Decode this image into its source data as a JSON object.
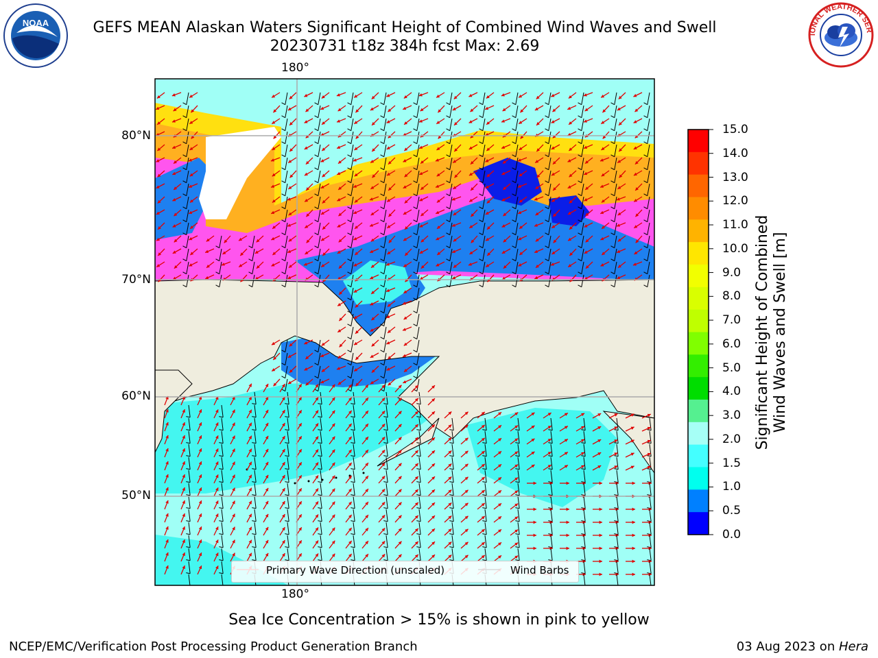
{
  "title": {
    "line1": "GEFS MEAN Alaskan Waters Significant Height of Combined Wind Waves and Swell",
    "line2": "20230731 t18z 384h fcst   Max: 2.69"
  },
  "logos": {
    "left_text": "NOAA",
    "right_text": "NATIONAL WEATHER SERVICE"
  },
  "map": {
    "lon_labels": {
      "top": "180°",
      "bottom": "180°"
    },
    "lat_labels": [
      "80°N",
      "70°N",
      "60°N",
      "50°N"
    ],
    "legend": {
      "wave_label": "Primary Wave Direction (unscaled)",
      "wind_label": "Wind Barbs",
      "wave_color": "#ff0000",
      "wind_color": "#000000"
    },
    "colors": {
      "land": "#efedde",
      "ocean_open": "#9ffff7",
      "ocean_mid": "#40f6f0",
      "ocean_shallow": "#1e80f0",
      "ice_pink": "#ff44ff",
      "ice_orange": "#ffb020",
      "ice_yellow": "#ffe010"
    }
  },
  "colorbar": {
    "title_line1": "Significant Height of Combined",
    "title_line2": "Wind Waves and Swell [m]",
    "ticks": [
      "15.0",
      "14.0",
      "13.0",
      "12.0",
      "11.0",
      "10.0",
      "9.0",
      "8.0",
      "7.0",
      "6.0",
      "5.0",
      "4.0",
      "3.0",
      "2.0",
      "1.5",
      "1.0",
      "0.5",
      "0.0"
    ],
    "colors": [
      "#ff0000",
      "#ff3300",
      "#ff6600",
      "#ff8c00",
      "#ffb300",
      "#ffe600",
      "#f2ff00",
      "#d9ff00",
      "#bfff00",
      "#80ff00",
      "#33ee00",
      "#00dd00",
      "#55f090",
      "#a6fff6",
      "#44ffff",
      "#00ffee",
      "#0080ff",
      "#0000ff"
    ]
  },
  "caption": "Sea Ice Concentration > 15% is shown in pink to yellow",
  "footer": {
    "left": "NCEP/EMC/Verification Post Processing Product Generation Branch",
    "right_date": "03 Aug 2023 on ",
    "right_host": "Hera"
  }
}
